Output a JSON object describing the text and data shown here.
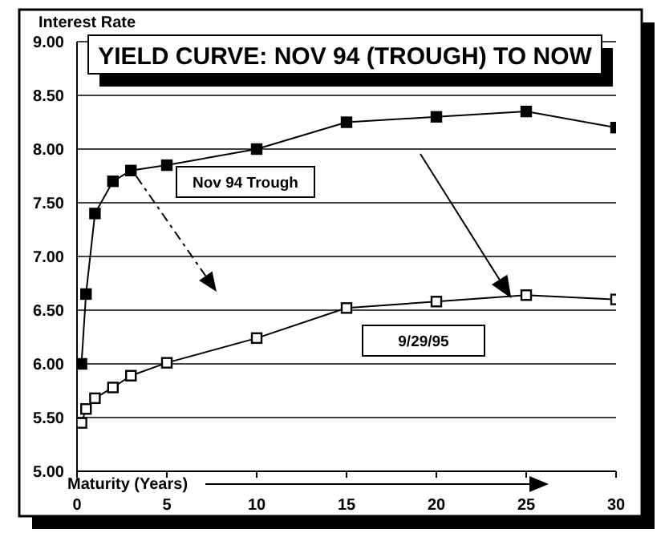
{
  "chart_data": {
    "type": "line",
    "title": "YIELD CURVE: NOV 94 (TROUGH) TO NOW",
    "xlabel": "Maturity (Years)",
    "ylabel": "Interest Rate",
    "x": [
      0.25,
      0.5,
      1,
      2,
      3,
      5,
      10,
      15,
      20,
      25,
      30
    ],
    "series": [
      {
        "name": "Nov 94 Trough",
        "color": "#000000",
        "values": [
          6.0,
          6.65,
          7.4,
          7.7,
          7.8,
          7.85,
          8.0,
          8.25,
          8.3,
          8.35,
          8.2
        ]
      },
      {
        "name": "9/29/95",
        "color": "#000000",
        "values": [
          5.45,
          5.58,
          5.68,
          5.78,
          5.89,
          6.01,
          6.24,
          6.52,
          6.58,
          6.64,
          6.6
        ]
      }
    ],
    "xlim": [
      0,
      30
    ],
    "xticks": [
      0,
      5,
      10,
      15,
      20,
      25,
      30
    ],
    "ylim": [
      5,
      9
    ],
    "yticks": [
      {
        "value": 5,
        "label": "5.00"
      },
      {
        "value": 5.5,
        "label": "5.50"
      },
      {
        "value": 6,
        "label": "6.00"
      },
      {
        "value": 6.5,
        "label": "6.50"
      },
      {
        "value": 7,
        "label": "7.00"
      },
      {
        "value": 7.5,
        "label": "7.50"
      },
      {
        "value": 8,
        "label": "8.00"
      },
      {
        "value": 8.5,
        "label": "8.50"
      },
      {
        "value": 9,
        "label": "9.00"
      }
    ],
    "grid": "y",
    "marker": "square",
    "line_style": "solid"
  }
}
